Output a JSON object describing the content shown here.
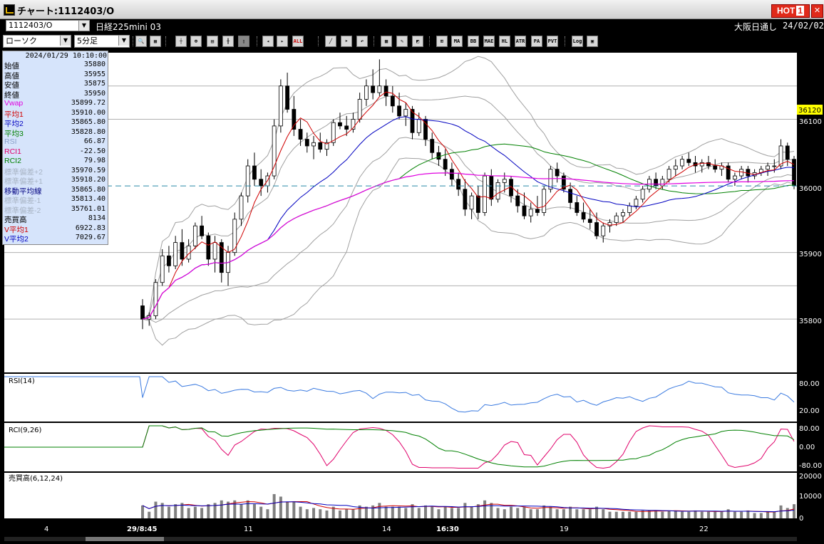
{
  "window": {
    "title": "チャート:1112403/O",
    "hot_label": "HOT",
    "hot_num": "1"
  },
  "symbol": {
    "code": "1112403/O",
    "name": "日経225mini 03",
    "market": "大阪日通し",
    "date": "24/02/02"
  },
  "controls": {
    "chart_type": "ローソク",
    "interval": "5分足"
  },
  "toolbar": {
    "all_label": "ALL",
    "icons": [
      "MA",
      "BB",
      "MAE",
      "HL",
      "ATR",
      "PA",
      "PVT",
      "Log"
    ]
  },
  "info": {
    "datetime": "2024/01/29 10:10:00",
    "rows": [
      {
        "label": "始値",
        "value": "35880",
        "color": "#000000"
      },
      {
        "label": "高値",
        "value": "35955",
        "color": "#000000"
      },
      {
        "label": "安値",
        "value": "35875",
        "color": "#000000"
      },
      {
        "label": "終値",
        "value": "35950",
        "color": "#000000"
      },
      {
        "label": "Vwap",
        "value": "35899.72",
        "color": "#e000e0"
      },
      {
        "label": "平均1",
        "value": "35910.00",
        "color": "#d00000"
      },
      {
        "label": "平均2",
        "value": "35865.80",
        "color": "#0000c0"
      },
      {
        "label": "平均3",
        "value": "35828.80",
        "color": "#008000"
      },
      {
        "label": "RSI",
        "value": "66.87",
        "color": "#8aa0c8"
      },
      {
        "label": "RCI1",
        "value": "-22.50",
        "color": "#e0006a"
      },
      {
        "label": "RCI2",
        "value": "79.98",
        "color": "#008000"
      },
      {
        "label": "標準偏差+2",
        "value": "35970.59",
        "color": "#a8b4c4"
      },
      {
        "label": "標準偏差+1",
        "value": "35918.20",
        "color": "#a8b4c4"
      },
      {
        "label": "移動平均線",
        "value": "35865.80",
        "color": "#000080"
      },
      {
        "label": "標準偏差-1",
        "value": "35813.40",
        "color": "#a8b4c4"
      },
      {
        "label": "標準偏差-2",
        "value": "35761.01",
        "color": "#a8b4c4"
      },
      {
        "label": "売買高",
        "value": "8134",
        "color": "#000000"
      },
      {
        "label": "V平均1",
        "value": "6922.83",
        "color": "#d00000"
      },
      {
        "label": "V平均2",
        "value": "7029.67",
        "color": "#0000c0"
      }
    ]
  },
  "price_axis": {
    "labels": [
      "36100",
      "35900",
      "35800"
    ],
    "current": "36120",
    "level_line": "36000"
  },
  "panels": {
    "rsi": {
      "title": "RSI(14)",
      "ticks": [
        "80.00",
        "20.00"
      ]
    },
    "rci": {
      "title": "RCI(9,26)",
      "ticks": [
        "80.00",
        "0.00",
        "-80.00"
      ]
    },
    "vol": {
      "title": "売買高(6,12,24)",
      "ticks": [
        "20000",
        "10000",
        "0"
      ]
    }
  },
  "x_labels": [
    "4",
    "29/8:45",
    "11",
    "14",
    "16:30",
    "19",
    "22"
  ],
  "colors": {
    "candle": "#000000",
    "ma1": "#d00000",
    "ma2": "#0000c0",
    "ma3": "#008000",
    "vwap": "#e000e0",
    "bb": "#a0a0a0",
    "rsi": "#3a7ae0",
    "rci1": "#e0006a",
    "rci2": "#008000",
    "volume": "#808080"
  },
  "chart_data": {
    "type": "candlestick",
    "interval": "5分足",
    "y_range": [
      35720,
      36200
    ],
    "level_line": 36000,
    "ohlc": [
      [
        35820,
        35830,
        35785,
        35800
      ],
      [
        35800,
        35810,
        35790,
        35805
      ],
      [
        35805,
        35860,
        35800,
        35855
      ],
      [
        35855,
        35905,
        35850,
        35895
      ],
      [
        35895,
        35910,
        35870,
        35880
      ],
      [
        35880,
        35925,
        35875,
        35915
      ],
      [
        35915,
        35935,
        35880,
        35890
      ],
      [
        35890,
        35920,
        35885,
        35910
      ],
      [
        35910,
        35945,
        35905,
        35940
      ],
      [
        35940,
        35955,
        35920,
        35925
      ],
      [
        35925,
        35930,
        35880,
        35890
      ],
      [
        35890,
        35925,
        35870,
        35915
      ],
      [
        35915,
        35920,
        35855,
        35870
      ],
      [
        35870,
        35910,
        35850,
        35900
      ],
      [
        35900,
        35960,
        35895,
        35950
      ],
      [
        35950,
        35990,
        35940,
        35985
      ],
      [
        35985,
        36040,
        35975,
        36030
      ],
      [
        36030,
        36050,
        36000,
        36010
      ],
      [
        36010,
        36025,
        35985,
        36000
      ],
      [
        36000,
        36020,
        35990,
        36015
      ],
      [
        36015,
        36100,
        36010,
        36090
      ],
      [
        36090,
        36160,
        36080,
        36150
      ],
      [
        36150,
        36170,
        36110,
        36115
      ],
      [
        36115,
        36135,
        36075,
        36085
      ],
      [
        36085,
        36100,
        36060,
        36070
      ],
      [
        36070,
        36080,
        36050,
        36060
      ],
      [
        36060,
        36075,
        36040,
        36065
      ],
      [
        36065,
        36080,
        36050,
        36055
      ],
      [
        36055,
        36070,
        36045,
        36065
      ],
      [
        36065,
        36100,
        36060,
        36095
      ],
      [
        36095,
        36110,
        36085,
        36090
      ],
      [
        36090,
        36105,
        36075,
        36085
      ],
      [
        36085,
        36110,
        36080,
        36100
      ],
      [
        36100,
        36140,
        36095,
        36130
      ],
      [
        36130,
        36160,
        36120,
        36150
      ],
      [
        36150,
        36175,
        36130,
        36140
      ],
      [
        36140,
        36190,
        36135,
        36150
      ],
      [
        36150,
        36160,
        36120,
        36135
      ],
      [
        36135,
        36150,
        36110,
        36120
      ],
      [
        36120,
        36140,
        36100,
        36105
      ],
      [
        36105,
        36125,
        36090,
        36115
      ],
      [
        36115,
        36120,
        36070,
        36080
      ],
      [
        36080,
        36110,
        36075,
        36100
      ],
      [
        36100,
        36105,
        36060,
        36070
      ],
      [
        36070,
        36080,
        36040,
        36050
      ],
      [
        36050,
        36060,
        36030,
        36040
      ],
      [
        36040,
        36055,
        36015,
        36025
      ],
      [
        36025,
        36035,
        36000,
        36010
      ],
      [
        36010,
        36020,
        35985,
        35995
      ],
      [
        35995,
        36010,
        35955,
        35965
      ],
      [
        35965,
        35990,
        35950,
        35985
      ],
      [
        35985,
        36000,
        35950,
        35960
      ],
      [
        35960,
        36020,
        35955,
        36015
      ],
      [
        36015,
        36025,
        35970,
        35980
      ],
      [
        35980,
        36010,
        35975,
        36005
      ],
      [
        36005,
        36020,
        35990,
        36010
      ],
      [
        36010,
        36015,
        35975,
        35985
      ],
      [
        35985,
        35995,
        35960,
        35970
      ],
      [
        35970,
        35990,
        35950,
        35955
      ],
      [
        35955,
        35975,
        35945,
        35965
      ],
      [
        35965,
        35985,
        35955,
        35960
      ],
      [
        35960,
        36000,
        35955,
        35995
      ],
      [
        35995,
        36030,
        35990,
        36025
      ],
      [
        36025,
        36035,
        36005,
        36015
      ],
      [
        36015,
        36020,
        35990,
        35995
      ],
      [
        35995,
        36005,
        35965,
        35975
      ],
      [
        35975,
        35985,
        35955,
        35960
      ],
      [
        35960,
        35975,
        35945,
        35950
      ],
      [
        35950,
        35965,
        35935,
        35945
      ],
      [
        35945,
        35960,
        35920,
        35925
      ],
      [
        35925,
        35945,
        35915,
        35940
      ],
      [
        35940,
        35950,
        35930,
        35945
      ],
      [
        35945,
        35960,
        35940,
        35955
      ],
      [
        35955,
        35965,
        35945,
        35960
      ],
      [
        35960,
        35975,
        35955,
        35970
      ],
      [
        35970,
        35985,
        35965,
        35980
      ],
      [
        35980,
        36000,
        35975,
        35995
      ],
      [
        35995,
        36015,
        35990,
        36010
      ],
      [
        36010,
        36020,
        35995,
        36000
      ],
      [
        36000,
        36015,
        35995,
        36010
      ],
      [
        36010,
        36030,
        36005,
        36025
      ],
      [
        36025,
        36040,
        36015,
        36030
      ],
      [
        36030,
        36045,
        36025,
        36040
      ],
      [
        36040,
        36050,
        36030,
        36035
      ],
      [
        36035,
        36045,
        36020,
        36030
      ],
      [
        36030,
        36040,
        36020,
        36035
      ],
      [
        36035,
        36045,
        36025,
        36030
      ],
      [
        36030,
        36040,
        36020,
        36025
      ],
      [
        36025,
        36035,
        36015,
        36030
      ],
      [
        36030,
        36035,
        36005,
        36010
      ],
      [
        36010,
        36020,
        36000,
        36015
      ],
      [
        36015,
        36030,
        36010,
        36025
      ],
      [
        36025,
        36030,
        36005,
        36015
      ],
      [
        36015,
        36025,
        36010,
        36020
      ],
      [
        36020,
        36030,
        36015,
        36025
      ],
      [
        36025,
        36035,
        36015,
        36030
      ],
      [
        36030,
        36040,
        36020,
        36030
      ],
      [
        36030,
        36070,
        36025,
        36060
      ],
      [
        36060,
        36065,
        36030,
        36040
      ],
      [
        36040,
        36045,
        35995,
        36000
      ]
    ]
  }
}
